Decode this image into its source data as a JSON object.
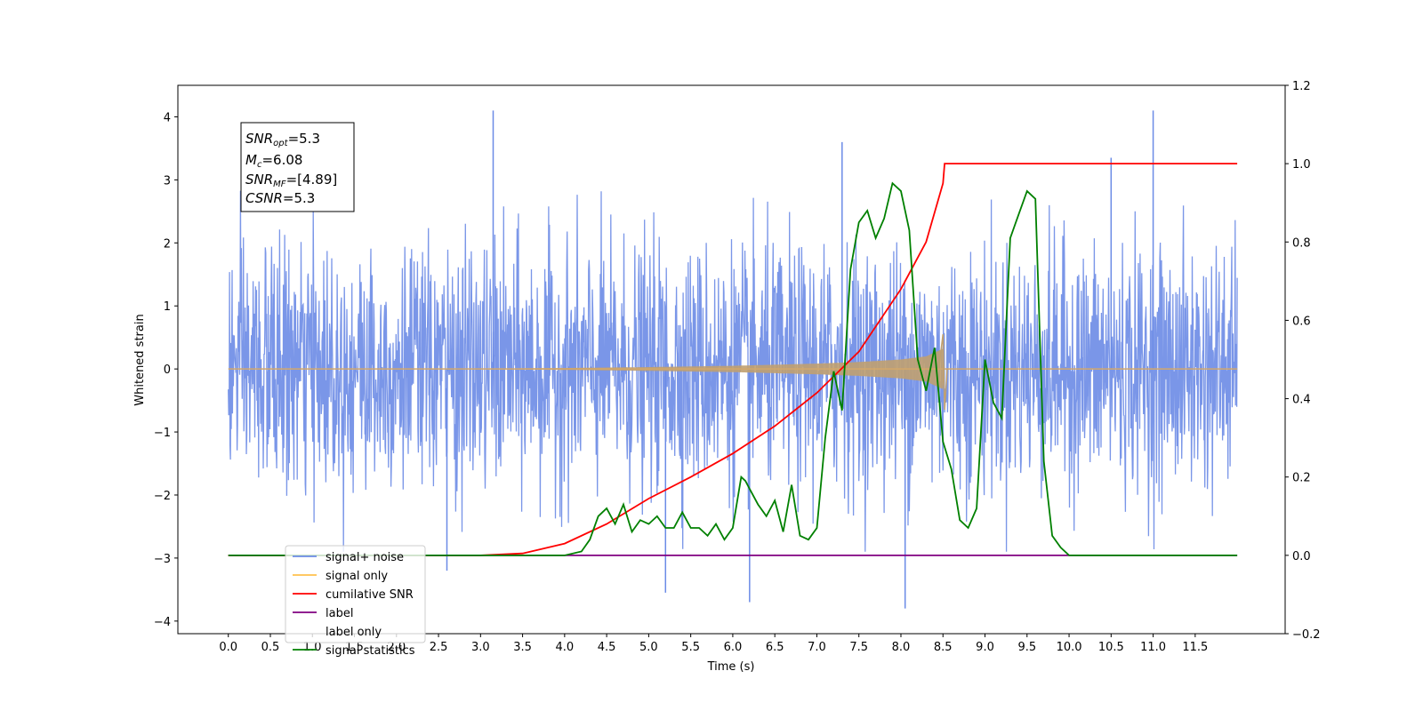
{
  "chart_data": {
    "type": "line",
    "xlabel": "Time (s)",
    "ylabel": "Whitened strain",
    "xlim": [
      -0.6,
      12.57
    ],
    "xticks": [
      0.0,
      0.5,
      1.0,
      1.5,
      2.0,
      2.5,
      3.0,
      3.5,
      4.0,
      4.5,
      5.0,
      5.5,
      6.0,
      6.5,
      7.0,
      7.5,
      8.0,
      8.5,
      9.0,
      9.5,
      10.0,
      10.5,
      11.0,
      11.5
    ],
    "xtick_labels": [
      "0.0",
      "0.5",
      "1.0",
      "1.5",
      "2.0",
      "2.5",
      "3.0",
      "3.5",
      "4.0",
      "4.5",
      "5.0",
      "5.5",
      "6.0",
      "6.5",
      "7.0",
      "7.5",
      "8.0",
      "8.5",
      "9.0",
      "9.5",
      "10.0",
      "10.5",
      "11.0",
      "11.5"
    ],
    "ylim_left": [
      -4.2,
      4.5
    ],
    "yticks_left": [
      -4,
      -3,
      -2,
      -1,
      0,
      1,
      2,
      3,
      4
    ],
    "ytick_labels_left": [
      "−4",
      "−3",
      "−2",
      "−1",
      "0",
      "1",
      "2",
      "3",
      "4"
    ],
    "ylim_right": [
      -0.2,
      1.2
    ],
    "yticks_right": [
      -0.2,
      0.0,
      0.2,
      0.4,
      0.6,
      0.8,
      1.0,
      1.2
    ],
    "ytick_labels_right": [
      "−0.2",
      "0.0",
      "0.2",
      "0.4",
      "0.6",
      "0.8",
      "1.0",
      "1.2"
    ],
    "grid": false,
    "legend_placement": "lower-left",
    "annotation": {
      "snr_opt": {
        "base": "SNR",
        "sub": "opt",
        "value": "=5.3"
      },
      "mc": {
        "base": "M",
        "sub": "c",
        "value": "=6.08"
      },
      "snr_mf": {
        "base": "SNR",
        "sub": "MF",
        "value": "=[4.89]"
      },
      "csnr": {
        "base": "CSNR",
        "value": "=5.3"
      }
    },
    "series": [
      {
        "name": "signal+ noise",
        "color": "#6b8be6",
        "axis": "left",
        "description_points": {
          "x_range": [
            0.0,
            12.0
          ],
          "typical_amplitude": 1.5,
          "outlier_peaks": [
            [
              3.15,
              4.1
            ],
            [
              11.0,
              4.1
            ],
            [
              7.3,
              3.6
            ],
            [
              10.5,
              3.35
            ],
            [
              8.05,
              -3.8
            ],
            [
              6.2,
              -3.7
            ],
            [
              5.2,
              -3.55
            ],
            [
              2.6,
              -3.2
            ]
          ]
        }
      },
      {
        "name": "signal only",
        "color": "#ffc04d",
        "axis": "left",
        "envelope": {
          "x": [
            0.0,
            3.0,
            4.0,
            5.0,
            6.0,
            7.0,
            7.5,
            8.0,
            8.3,
            8.5,
            8.52,
            12.0
          ],
          "amp": [
            0.0,
            0.005,
            0.015,
            0.03,
            0.05,
            0.085,
            0.11,
            0.15,
            0.2,
            0.32,
            0.0,
            0.0
          ]
        }
      },
      {
        "name": "cumilative SNR",
        "color": "#ff0000",
        "axis": "right",
        "x": [
          0.0,
          3.0,
          3.5,
          4.0,
          4.5,
          5.0,
          5.5,
          6.0,
          6.5,
          7.0,
          7.5,
          8.0,
          8.3,
          8.5,
          8.52,
          12.0
        ],
        "y": [
          0.0,
          0.0,
          0.005,
          0.03,
          0.08,
          0.145,
          0.2,
          0.26,
          0.33,
          0.415,
          0.52,
          0.68,
          0.8,
          0.95,
          1.0,
          1.0
        ]
      },
      {
        "name": "label",
        "color": "#800080",
        "axis": "right",
        "x": [
          0.0,
          12.0
        ],
        "y": [
          0.0,
          0.0
        ]
      },
      {
        "name": "label only",
        "color": "#ffffff",
        "axis": "right",
        "x": [],
        "y": []
      },
      {
        "name": "signal statistics",
        "color": "#008000",
        "axis": "right",
        "x": [
          0.0,
          3.0,
          4.0,
          4.2,
          4.3,
          4.4,
          4.5,
          4.6,
          4.7,
          4.8,
          4.9,
          5.0,
          5.1,
          5.2,
          5.3,
          5.4,
          5.5,
          5.6,
          5.7,
          5.8,
          5.9,
          6.0,
          6.1,
          6.15,
          6.2,
          6.3,
          6.4,
          6.5,
          6.6,
          6.7,
          6.8,
          6.9,
          7.0,
          7.1,
          7.2,
          7.3,
          7.4,
          7.5,
          7.6,
          7.7,
          7.8,
          7.9,
          8.0,
          8.1,
          8.2,
          8.3,
          8.4,
          8.5,
          8.6,
          8.7,
          8.8,
          8.9,
          9.0,
          9.1,
          9.2,
          9.3,
          9.4,
          9.5,
          9.6,
          9.7,
          9.8,
          9.9,
          10.0,
          12.0
        ],
        "y": [
          0.0,
          0.0,
          0.0,
          0.01,
          0.04,
          0.1,
          0.12,
          0.08,
          0.13,
          0.06,
          0.09,
          0.08,
          0.1,
          0.07,
          0.07,
          0.11,
          0.07,
          0.07,
          0.05,
          0.08,
          0.04,
          0.07,
          0.2,
          0.19,
          0.17,
          0.13,
          0.1,
          0.14,
          0.06,
          0.18,
          0.05,
          0.04,
          0.07,
          0.3,
          0.47,
          0.37,
          0.73,
          0.85,
          0.88,
          0.81,
          0.86,
          0.95,
          0.93,
          0.83,
          0.5,
          0.42,
          0.53,
          0.29,
          0.22,
          0.09,
          0.07,
          0.12,
          0.5,
          0.39,
          0.35,
          0.81,
          0.87,
          0.93,
          0.91,
          0.24,
          0.05,
          0.02,
          0.0,
          0.0
        ]
      }
    ]
  }
}
